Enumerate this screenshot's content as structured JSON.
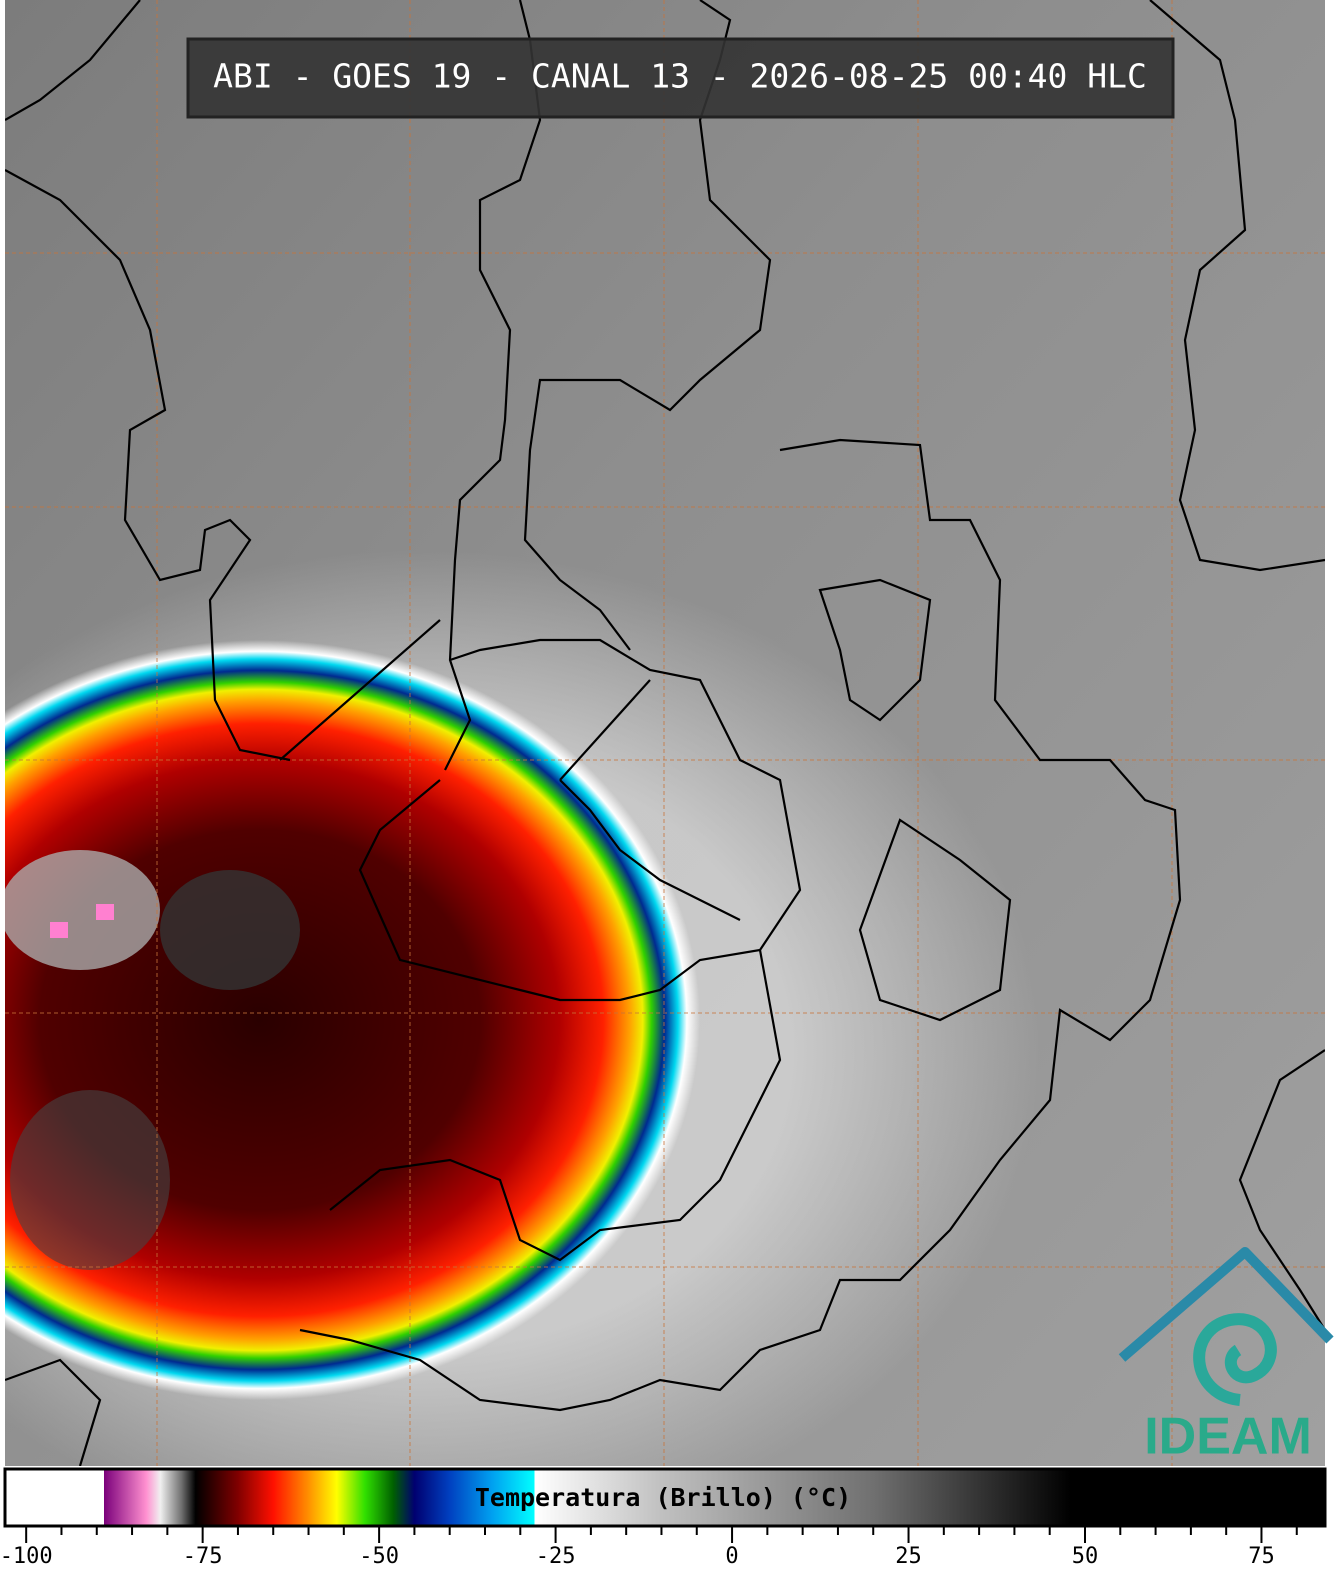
{
  "title": "ABI - GOES 19 - CANAL 13 - 2026-08-25 00:40 HLC",
  "logo": "IDEAM",
  "colorbar": {
    "label": "Temperatura (Brillo) (°C)",
    "clim": [
      -103,
      84
    ],
    "ticks": [
      -100,
      -75,
      -50,
      -25,
      0,
      25,
      50,
      75
    ],
    "minor_ticks": [
      -95,
      -90,
      -85,
      -80,
      -70,
      -65,
      -60,
      -55,
      -45,
      -40,
      -35,
      -30,
      -20,
      -15,
      -10,
      -5,
      5,
      10,
      15,
      20,
      30,
      35,
      40,
      45,
      55,
      60,
      65,
      70,
      80
    ],
    "colormap": [
      {
        "value": -103,
        "color": "#ffffff"
      },
      {
        "value": -89,
        "color": "#ffffff"
      },
      {
        "value": -89,
        "color": "#7a007a"
      },
      {
        "value": -83,
        "color": "#ff90d0"
      },
      {
        "value": -81,
        "color": "#f0f0f0"
      },
      {
        "value": -78,
        "color": "#707070"
      },
      {
        "value": -76,
        "color": "#000000"
      },
      {
        "value": -70,
        "color": "#800000"
      },
      {
        "value": -65,
        "color": "#ff1000"
      },
      {
        "value": -60,
        "color": "#ff9000"
      },
      {
        "value": -56,
        "color": "#ffff00"
      },
      {
        "value": -52,
        "color": "#30e000"
      },
      {
        "value": -48,
        "color": "#006000"
      },
      {
        "value": -45,
        "color": "#000070"
      },
      {
        "value": -40,
        "color": "#0040c0"
      },
      {
        "value": -34,
        "color": "#00a0f0"
      },
      {
        "value": -28,
        "color": "#00ffff"
      },
      {
        "value": -28,
        "color": "#ffffff"
      },
      {
        "value": -10,
        "color": "#c0c0c0"
      },
      {
        "value": 20,
        "color": "#707070"
      },
      {
        "value": 48,
        "color": "#000000"
      },
      {
        "value": 84,
        "color": "#000000"
      }
    ]
  }
}
